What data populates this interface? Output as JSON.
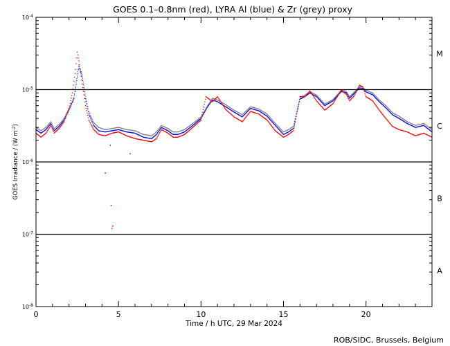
{
  "chart_data": {
    "type": "line",
    "title": "GOES 0.1–0.8nm (red), LYRA Al (blue) & Zr (grey) proxy",
    "xlabel": "Time / h UTC, 29 Mar 2024",
    "ylabel_parts": {
      "main": "GOES Irradiance / (W m",
      "exp": "-2",
      "close": ")"
    },
    "xlim": [
      0,
      24
    ],
    "ylim": [
      1e-08,
      0.0001
    ],
    "yscale": "log",
    "x_ticks": [
      {
        "value": 0,
        "label": "0"
      },
      {
        "value": 5,
        "label": "5"
      },
      {
        "value": 10,
        "label": "10"
      },
      {
        "value": 15,
        "label": "15"
      },
      {
        "value": 20,
        "label": "20"
      }
    ],
    "y_ticks": [
      {
        "value": 1e-08,
        "base": "10",
        "exp": "-8"
      },
      {
        "value": 1e-07,
        "base": "10",
        "exp": "-7"
      },
      {
        "value": 1e-06,
        "base": "10",
        "exp": "-6"
      },
      {
        "value": 1e-05,
        "base": "10",
        "exp": "-5"
      },
      {
        "value": 0.0001,
        "base": "10",
        "exp": "-4"
      }
    ],
    "flare_class_lines": [
      1e-07,
      1e-06,
      1e-05
    ],
    "flare_classes": [
      {
        "label": "A",
        "center": 3.16e-08
      },
      {
        "label": "B",
        "center": 3.16e-07
      },
      {
        "label": "C",
        "center": 3.16e-06
      },
      {
        "label": "M",
        "center": 3.16e-05
      }
    ],
    "credit": "ROB/SIDC, Brussels, Belgium",
    "colors": {
      "goes": "#ff0000",
      "lyra_al": "#0000ff",
      "lyra_zr": "#808080",
      "axes": "#000000"
    },
    "series": [
      {
        "name": "LYRA Zr proxy (grey)",
        "color": "#808080",
        "x": [
          0,
          0.3,
          0.6,
          0.9,
          1.1,
          1.4,
          1.7,
          2.0,
          2.3,
          2.5,
          2.6,
          2.8,
          3.0,
          3.2,
          3.5,
          3.8,
          4.2,
          4.6,
          5.0,
          5.5,
          6.0,
          6.5,
          7.0,
          7.3,
          7.6,
          8.0,
          8.3,
          8.6,
          9.0,
          9.5,
          10.0,
          10.4,
          10.7,
          11.0,
          11.5,
          12.0,
          12.5,
          13.0,
          13.5,
          14.0,
          14.5,
          15.0,
          15.3,
          15.6,
          16.0,
          16.3,
          16.6,
          17.0,
          17.5,
          18.0,
          18.5,
          18.8,
          19.0,
          19.3,
          19.6,
          19.8,
          20.0,
          20.4,
          20.8,
          21.2,
          21.6,
          22.0,
          22.5,
          23.0,
          23.5,
          24.0
        ],
        "y": [
          3e-06,
          2.7e-06,
          3e-06,
          3.6e-06,
          2.9e-06,
          3.3e-06,
          4e-06,
          5.5e-06,
          7.8e-06,
          1.6e-05,
          2.2e-05,
          1.6e-05,
          8e-06,
          5e-06,
          3.5e-06,
          3e-06,
          2.8e-06,
          2.9e-06,
          3e-06,
          2.8e-06,
          2.7e-06,
          2.4e-06,
          2.3e-06,
          2.6e-06,
          3.2e-06,
          2.9e-06,
          2.6e-06,
          2.6e-06,
          2.8e-06,
          3.4e-06,
          4.2e-06,
          6e-06,
          7.6e-06,
          7.2e-06,
          6.2e-06,
          5.2e-06,
          4.5e-06,
          5.8e-06,
          5.4e-06,
          4.6e-06,
          3.4e-06,
          2.6e-06,
          2.8e-06,
          3.1e-06,
          7.8e-06,
          8.4e-06,
          9.4e-06,
          8.4e-06,
          6.3e-06,
          7.3e-06,
          9.8e-06,
          9.5e-06,
          8e-06,
          9.3e-06,
          1.1e-05,
          1.08e-05,
          9.8e-06,
          9e-06,
          7.2e-06,
          6e-06,
          4.8e-06,
          4.3e-06,
          3.6e-06,
          3.2e-06,
          3.4e-06,
          2.8e-06
        ]
      },
      {
        "name": "LYRA Al proxy (blue)",
        "color": "#0000ff",
        "x": [
          0,
          0.3,
          0.6,
          0.9,
          1.1,
          1.4,
          1.7,
          2.0,
          2.3,
          2.5,
          2.6,
          2.8,
          3.0,
          3.2,
          3.5,
          3.8,
          4.2,
          4.6,
          5.0,
          5.5,
          6.0,
          6.5,
          7.0,
          7.3,
          7.6,
          8.0,
          8.3,
          8.6,
          9.0,
          9.5,
          10.0,
          10.4,
          10.7,
          11.0,
          11.5,
          12.0,
          12.5,
          13.0,
          13.5,
          14.0,
          14.5,
          15.0,
          15.3,
          15.6,
          16.0,
          16.3,
          16.6,
          17.0,
          17.5,
          18.0,
          18.5,
          18.8,
          19.0,
          19.3,
          19.6,
          19.8,
          20.0,
          20.4,
          20.8,
          21.2,
          21.6,
          22.0,
          22.5,
          23.0,
          23.5,
          24.0
        ],
        "y": [
          2.8e-06,
          2.5e-06,
          2.8e-06,
          3.4e-06,
          2.7e-06,
          3.1e-06,
          3.8e-06,
          5.2e-06,
          7.5e-06,
          1.5e-05,
          2.1e-05,
          1.5e-05,
          7.5e-06,
          4.6e-06,
          3.2e-06,
          2.7e-06,
          2.6e-06,
          2.7e-06,
          2.8e-06,
          2.6e-06,
          2.5e-06,
          2.2e-06,
          2.1e-06,
          2.4e-06,
          3e-06,
          2.7e-06,
          2.4e-06,
          2.4e-06,
          2.6e-06,
          3.2e-06,
          4e-06,
          5.8e-06,
          7.2e-06,
          6.8e-06,
          5.8e-06,
          4.9e-06,
          4.2e-06,
          5.5e-06,
          5.1e-06,
          4.3e-06,
          3.2e-06,
          2.4e-06,
          2.6e-06,
          2.9e-06,
          7.4e-06,
          8e-06,
          9e-06,
          8e-06,
          6e-06,
          7e-06,
          9.4e-06,
          9.1e-06,
          7.6e-06,
          8.9e-06,
          1.05e-05,
          1.04e-05,
          9.3e-06,
          8.5e-06,
          6.8e-06,
          5.6e-06,
          4.5e-06,
          4e-06,
          3.4e-06,
          3e-06,
          3.2e-06,
          2.6e-06
        ]
      },
      {
        "name": "GOES 0.1–0.8nm (red)",
        "color": "#ff0000",
        "x": [
          0,
          0.3,
          0.6,
          0.9,
          1.1,
          1.4,
          1.7,
          2.0,
          2.2,
          2.4,
          2.5,
          2.6,
          2.8,
          3.0,
          3.2,
          3.5,
          3.8,
          4.2,
          4.6,
          5.0,
          5.5,
          6.0,
          6.5,
          7.0,
          7.3,
          7.6,
          8.0,
          8.3,
          8.6,
          9.0,
          9.5,
          10.0,
          10.3,
          10.7,
          11.0,
          11.5,
          12.0,
          12.5,
          13.0,
          13.5,
          14.0,
          14.5,
          15.0,
          15.3,
          15.6,
          16.0,
          16.3,
          16.6,
          17.0,
          17.5,
          18.0,
          18.5,
          18.8,
          19.0,
          19.3,
          19.6,
          19.8,
          20.0,
          20.4,
          20.8,
          21.2,
          21.6,
          22.0,
          22.5,
          23.0,
          23.5,
          24.0
        ],
        "y": [
          2.5e-06,
          2.2e-06,
          2.5e-06,
          3.2e-06,
          2.5e-06,
          2.9e-06,
          3.6e-06,
          5.5e-06,
          9e-06,
          1.9e-05,
          3.3e-05,
          2.5e-05,
          1.2e-05,
          6e-06,
          3.8e-06,
          2.8e-06,
          2.4e-06,
          2.3e-06,
          2.5e-06,
          2.6e-06,
          2.3e-06,
          2.1e-06,
          2e-06,
          1.9e-06,
          2.1e-06,
          2.8e-06,
          2.5e-06,
          2.2e-06,
          2.2e-06,
          2.4e-06,
          3e-06,
          3.8e-06,
          8e-06,
          6.8e-06,
          8e-06,
          5.3e-06,
          4.2e-06,
          3.6e-06,
          5e-06,
          4.6e-06,
          3.8e-06,
          2.7e-06,
          2.2e-06,
          2.4e-06,
          2.7e-06,
          8e-06,
          8e-06,
          9.6e-06,
          7e-06,
          5.2e-06,
          6.4e-06,
          9.8e-06,
          8.6e-06,
          7e-06,
          8.3e-06,
          1.15e-05,
          1.1e-05,
          8e-06,
          7e-06,
          5.2e-06,
          4e-06,
          3.1e-06,
          2.8e-06,
          2.6e-06,
          2.3e-06,
          2.5e-06,
          2.2e-06
        ]
      },
      {
        "name": "GOES dropouts",
        "color": "#ff0000",
        "markers_only": true,
        "x": [
          4.5,
          4.55,
          4.6,
          4.65,
          4.2,
          5.7
        ],
        "y": [
          1.7e-06,
          2.5e-07,
          1.2e-07,
          1.3e-07,
          7e-07,
          1.3e-06
        ]
      }
    ]
  }
}
